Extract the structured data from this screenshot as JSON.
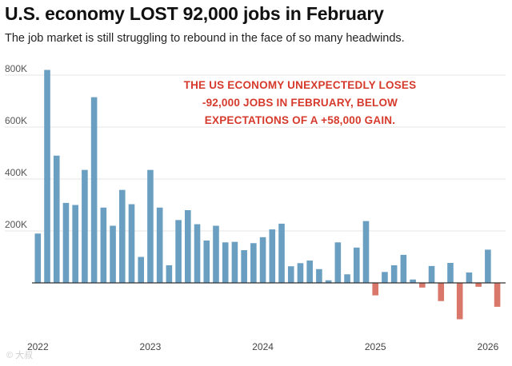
{
  "header": {
    "title": "U.S. economy LOST 92,000 jobs in February",
    "subtitle": "The job market is still struggling to rebound in the face of so many headwinds."
  },
  "watermark": "© 大叔",
  "colors": {
    "positive": "#6a9fc2",
    "negative": "#d9786a",
    "annotation": "#d63a2c",
    "grid": "#e6e6e6",
    "axis": "#333333"
  },
  "chart_data": {
    "type": "bar",
    "title": "U.S. economy LOST 92,000 jobs in February",
    "subtitle": "The job market is still struggling to rebound in the face of so many headwinds.",
    "xlabel": "",
    "ylabel": "",
    "ylim": [
      -150000,
      850000
    ],
    "yticks": [
      {
        "value": 200000,
        "label": "200K"
      },
      {
        "value": 400000,
        "label": "400K"
      },
      {
        "value": 600000,
        "label": "600K"
      },
      {
        "value": 800000,
        "label": "800K"
      }
    ],
    "xticks": [
      "2022",
      "2023",
      "2024",
      "2025",
      "2026"
    ],
    "xtick_month_index": [
      0,
      12,
      24,
      36,
      48
    ],
    "grid": true,
    "legend": "none",
    "annotation": [
      "THE US ECONOMY UNEXPECTEDLY LOSES",
      "-92,000 JOBS IN FEBRUARY, BELOW",
      "EXPECTATIONS OF A +58,000 GAIN."
    ],
    "categories": [
      "2022-01",
      "2022-02",
      "2022-03",
      "2022-04",
      "2022-05",
      "2022-06",
      "2022-07",
      "2022-08",
      "2022-09",
      "2022-10",
      "2022-11",
      "2022-12",
      "2023-01",
      "2023-02",
      "2023-03",
      "2023-04",
      "2023-05",
      "2023-06",
      "2023-07",
      "2023-08",
      "2023-09",
      "2023-10",
      "2023-11",
      "2023-12",
      "2024-01",
      "2024-02",
      "2024-03",
      "2024-04",
      "2024-05",
      "2024-06",
      "2024-07",
      "2024-08",
      "2024-09",
      "2024-10",
      "2024-11",
      "2024-12",
      "2025-01",
      "2025-02",
      "2025-03",
      "2025-04",
      "2025-05",
      "2025-06",
      "2025-07",
      "2025-08",
      "2025-09",
      "2025-10",
      "2025-11",
      "2025-12",
      "2026-01",
      "2026-02"
    ],
    "values": [
      190000,
      820000,
      490000,
      308000,
      300000,
      435000,
      715000,
      290000,
      220000,
      358000,
      303000,
      100000,
      435000,
      290000,
      68000,
      242000,
      280000,
      226000,
      163000,
      220000,
      156000,
      158000,
      126000,
      153000,
      176000,
      206000,
      228000,
      64000,
      76000,
      86000,
      53000,
      10000,
      156000,
      33000,
      136000,
      238000,
      -48000,
      42000,
      68000,
      108000,
      13000,
      -18000,
      65000,
      -70000,
      77000,
      -140000,
      40000,
      -15000,
      128000,
      -92000
    ]
  }
}
